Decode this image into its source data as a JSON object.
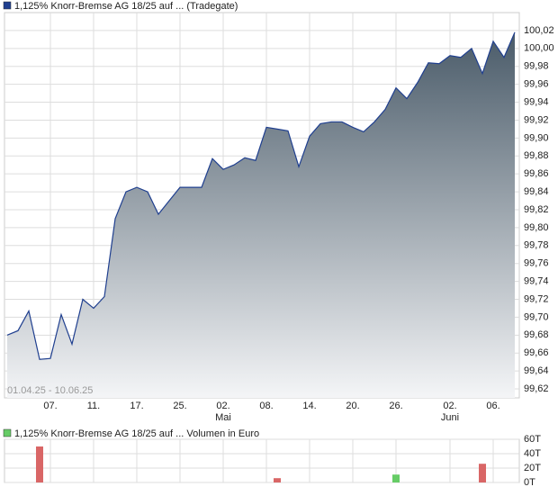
{
  "chart_data": [
    {
      "type": "area",
      "range_label": "01.04.25 - 10.06.25",
      "categories": [
        null,
        null,
        null,
        null,
        "07.",
        null,
        null,
        null,
        "11.",
        null,
        null,
        null,
        "17.",
        null,
        null,
        null,
        "25.",
        null,
        null,
        null,
        "02.",
        null,
        null,
        null,
        "08.",
        null,
        null,
        null,
        "14.",
        null,
        null,
        null,
        "20.",
        null,
        null,
        null,
        "26.",
        null,
        null,
        null,
        null,
        "02.",
        null,
        null,
        null,
        "06.",
        null,
        null
      ],
      "month_labels": [
        {
          "category": 20,
          "label": "Mai"
        },
        {
          "category": 41,
          "label": "Juni"
        }
      ],
      "series": [
        {
          "name": "1,125% Knorr-Bremse AG 18/25 auf ... (Tradegate)",
          "color": "#1f3f8f",
          "fill": "#4a5b69",
          "values": [
            99.68,
            99.685,
            99.707,
            99.653,
            99.654,
            99.703,
            99.67,
            99.72,
            99.71,
            99.723,
            99.81,
            99.84,
            99.845,
            99.84,
            99.815,
            99.83,
            99.845,
            99.845,
            99.845,
            99.877,
            99.865,
            99.87,
            99.878,
            99.875,
            99.912,
            99.91,
            99.908,
            99.868,
            99.902,
            99.916,
            99.918,
            99.918,
            99.912,
            99.907,
            99.918,
            99.932,
            99.956,
            99.944,
            99.962,
            99.984,
            99.983,
            99.992,
            99.99,
            100.0,
            99.972,
            100.008,
            99.99,
            100.018
          ]
        }
      ],
      "ylim": [
        99.61,
        100.04
      ],
      "yticks": [
        {
          "value": 99.62,
          "label": "99,62"
        },
        {
          "value": 99.64,
          "label": "99,64"
        },
        {
          "value": 99.66,
          "label": "99,66"
        },
        {
          "value": 99.68,
          "label": "99,68"
        },
        {
          "value": 99.7,
          "label": "99,70"
        },
        {
          "value": 99.72,
          "label": "99,72"
        },
        {
          "value": 99.74,
          "label": "99,74"
        },
        {
          "value": 99.76,
          "label": "99,76"
        },
        {
          "value": 99.78,
          "label": "99,78"
        },
        {
          "value": 99.8,
          "label": "99,80"
        },
        {
          "value": 99.82,
          "label": "99,82"
        },
        {
          "value": 99.84,
          "label": "99,84"
        },
        {
          "value": 99.86,
          "label": "99,86"
        },
        {
          "value": 99.88,
          "label": "99,88"
        },
        {
          "value": 99.9,
          "label": "99,90"
        },
        {
          "value": 99.92,
          "label": "99,92"
        },
        {
          "value": 99.94,
          "label": "99,94"
        },
        {
          "value": 99.96,
          "label": "99,96"
        },
        {
          "value": 99.98,
          "label": "99,98"
        },
        {
          "value": 100.0,
          "label": "100,00"
        },
        {
          "value": 100.02,
          "label": "100,02"
        }
      ],
      "grid": true
    },
    {
      "type": "bar",
      "series": [
        {
          "name": "1,125% Knorr-Bremse AG 18/25 auf ... Volumen in Euro",
          "color": "#66cc66",
          "values": [
            null,
            null,
            null,
            50000,
            null,
            null,
            null,
            null,
            null,
            null,
            null,
            null,
            null,
            null,
            null,
            null,
            null,
            null,
            null,
            null,
            null,
            null,
            null,
            null,
            null,
            6000,
            null,
            null,
            null,
            null,
            null,
            null,
            null,
            null,
            null,
            null,
            11000,
            null,
            null,
            null,
            null,
            null,
            null,
            null,
            26000,
            null,
            null,
            null
          ],
          "colors": [
            null,
            null,
            null,
            "#d96666",
            null,
            null,
            null,
            null,
            null,
            null,
            null,
            null,
            null,
            null,
            null,
            null,
            null,
            null,
            null,
            null,
            null,
            null,
            null,
            null,
            null,
            "#d96666",
            null,
            null,
            null,
            null,
            null,
            null,
            null,
            null,
            null,
            null,
            "#66cc66",
            null,
            null,
            null,
            null,
            null,
            null,
            null,
            "#d96666",
            null,
            null,
            null
          ]
        }
      ],
      "ylim": [
        0,
        60000
      ],
      "yticks": [
        {
          "value": 0,
          "label": "0T"
        },
        {
          "value": 20000,
          "label": "20T"
        },
        {
          "value": 40000,
          "label": "40T"
        },
        {
          "value": 60000,
          "label": "60T"
        }
      ],
      "grid": true
    }
  ]
}
